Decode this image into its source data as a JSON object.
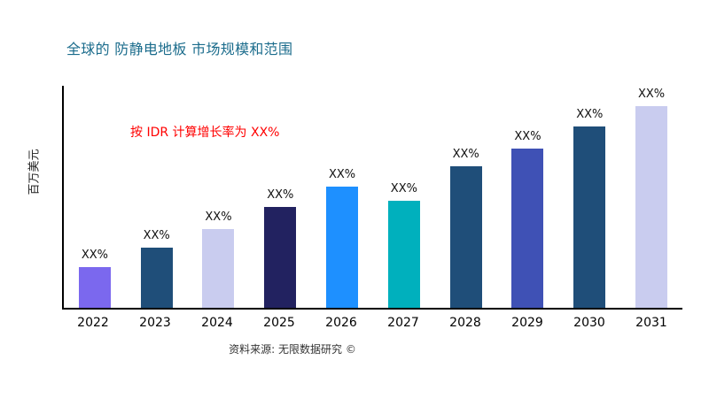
{
  "title": "全球的 防静电地板 市场规模和范围",
  "annotation": {
    "text": "按 IDR 计算增长率为 XX%",
    "color": "#FF0000"
  },
  "source": "资料来源: 无限数据研究 ©",
  "colors": {
    "title": "#1B6C8C",
    "axis": "#000000",
    "bar_label": "#111111"
  },
  "chart_data": {
    "type": "bar",
    "title": "全球的 防静电地板 市场规模和范围",
    "xlabel": "",
    "ylabel": "百万美元",
    "categories": [
      "2022",
      "2023",
      "2024",
      "2025",
      "2026",
      "2027",
      "2028",
      "2029",
      "2030",
      "2031"
    ],
    "values": [
      20,
      30,
      39,
      50,
      60,
      53,
      70,
      79,
      90,
      100
    ],
    "bar_labels": [
      "XX%",
      "XX%",
      "XX%",
      "XX%",
      "XX%",
      "XX%",
      "XX%",
      "XX%",
      "XX%",
      "XX%"
    ],
    "bar_colors": [
      "#7B68EE",
      "#1F4E79",
      "#C9CCEF",
      "#222260",
      "#1E90FF",
      "#00B0BD",
      "#1F4E79",
      "#3F51B5",
      "#1F4E79",
      "#C9CCEF"
    ],
    "ylim": [
      0,
      110
    ],
    "grid": false,
    "legend": "none"
  }
}
